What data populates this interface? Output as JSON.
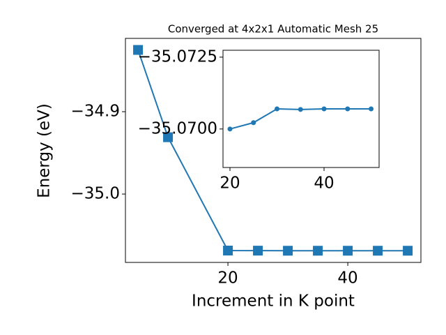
{
  "chart_data": [
    {
      "type": "line",
      "title": "Converged at 4x2x1 Automatic Mesh 25",
      "xlabel": "Increment in K point",
      "ylabel": "Energy (eV)",
      "x": [
        5,
        10,
        20,
        25,
        30,
        35,
        40,
        45,
        50
      ],
      "values": [
        -34.825,
        -34.931,
        -35.0686,
        -35.0687,
        -35.0688,
        -35.0688,
        -35.0688,
        -35.0688,
        -35.0688
      ],
      "color": "#1f77b4",
      "marker": "square",
      "xlim": [
        2.9,
        52.2
      ],
      "xticks": [
        20,
        40
      ],
      "ylim": [
        -35.083,
        -34.811
      ],
      "yticks": [
        {
          "value": -35.0,
          "label": "−35.0"
        },
        {
          "value": -34.9,
          "label": "−34.9"
        }
      ]
    },
    {
      "type": "line",
      "x": [
        20,
        25,
        30,
        35,
        40,
        45,
        50
      ],
      "values": [
        -35.07,
        -35.07022,
        -35.0707,
        -35.07068,
        -35.0707,
        -35.0707,
        -35.0707
      ],
      "color": "#1f77b4",
      "marker": "circle",
      "xlim": [
        18.52,
        51.7
      ],
      "xticks": [
        20,
        40
      ],
      "ylim": [
        -35.06866,
        -35.07274
      ],
      "yticks": [
        {
          "value": -35.07,
          "label": "−35.0700"
        },
        {
          "value": -35.0725,
          "label": "−35.0725"
        }
      ]
    }
  ]
}
